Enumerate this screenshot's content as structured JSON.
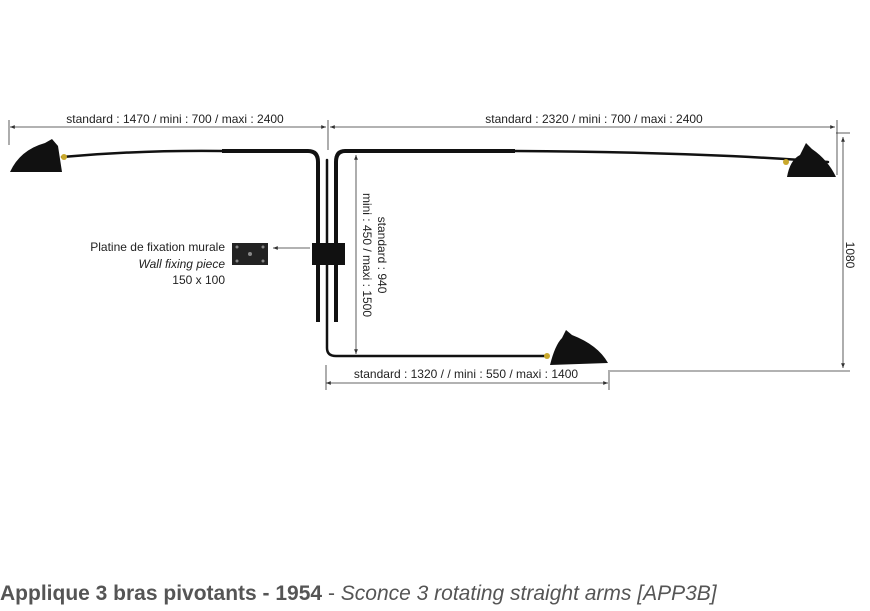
{
  "dimensions": {
    "left_arm": "standard : 1470 / mini : 700 / maxi : 2400",
    "right_arm": "standard : 2320 / mini : 700 / maxi : 2400",
    "vertical_standard": "standard : 940",
    "vertical_range": "mini : 450 / maxi : 1500",
    "height": "1080",
    "bottom_arm": "standard : 1320 /  / mini : 550 / maxi : 1400"
  },
  "wall_piece": {
    "label_fr": "Platine de fixation murale",
    "label_en": "Wall fixing piece",
    "size": "150 x 100"
  },
  "caption": {
    "title_fr": "Applique 3 bras pivotants - 1954",
    "separator": "-",
    "title_en": "Sconce 3 rotating straight arms  [APP3B]"
  }
}
